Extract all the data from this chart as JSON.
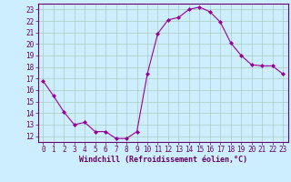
{
  "x": [
    0,
    1,
    2,
    3,
    4,
    5,
    6,
    7,
    8,
    9,
    10,
    11,
    12,
    13,
    14,
    15,
    16,
    17,
    18,
    19,
    20,
    21,
    22,
    23
  ],
  "y": [
    16.8,
    15.5,
    14.1,
    13.0,
    13.2,
    12.4,
    12.4,
    11.8,
    11.8,
    12.4,
    17.4,
    20.9,
    22.1,
    22.3,
    23.0,
    23.2,
    22.8,
    21.9,
    20.1,
    19.0,
    18.2,
    18.1,
    18.1,
    17.4
  ],
  "line_color": "#990099",
  "marker": "D",
  "marker_size": 2.0,
  "bg_color": "#cceeff",
  "grid_color": "#aaccbb",
  "xlabel": "Windchill (Refroidissement éolien,°C)",
  "xlim": [
    -0.5,
    23.5
  ],
  "ylim": [
    11.5,
    23.5
  ],
  "xticks": [
    0,
    1,
    2,
    3,
    4,
    5,
    6,
    7,
    8,
    9,
    10,
    11,
    12,
    13,
    14,
    15,
    16,
    17,
    18,
    19,
    20,
    21,
    22,
    23
  ],
  "yticks": [
    12,
    13,
    14,
    15,
    16,
    17,
    18,
    19,
    20,
    21,
    22,
    23
  ],
  "font_color": "#660066",
  "spine_color": "#660066",
  "tick_label_size": 5.5,
  "xlabel_size": 6.0
}
